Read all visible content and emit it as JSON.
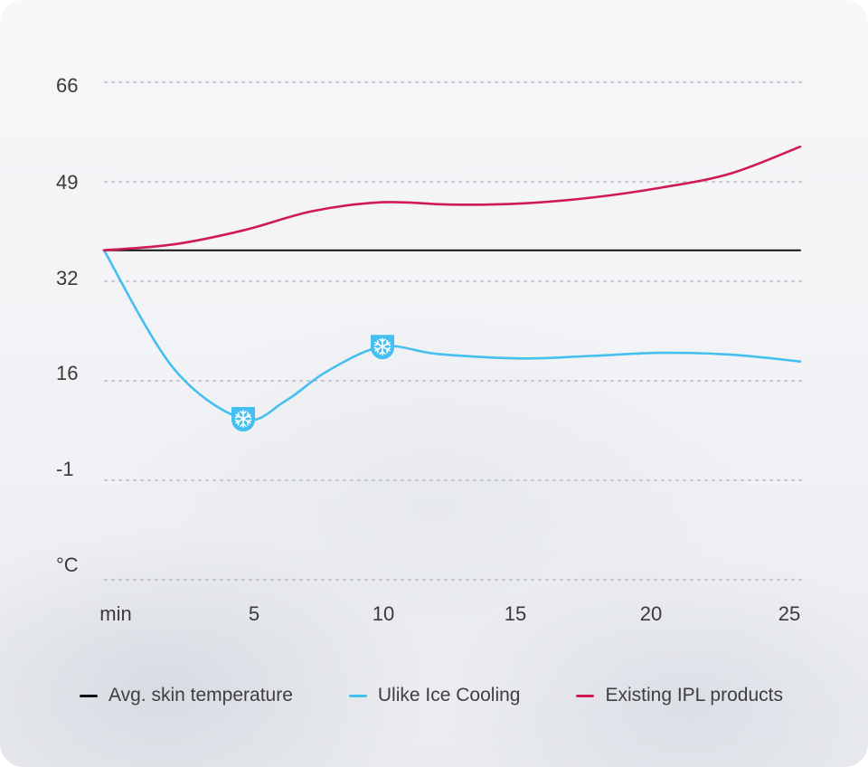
{
  "chart_data": {
    "type": "line",
    "ylabel": "°C",
    "y_ticks": [
      "66",
      "49",
      "32",
      "16",
      "-1"
    ],
    "x_ticks": [
      "min",
      "5",
      "10",
      "15",
      "20",
      "25"
    ],
    "y_axis_values": [
      66,
      49,
      32,
      16,
      -1,
      -18
    ],
    "grid": "horizontal dashed",
    "legend_position": "bottom",
    "series": [
      {
        "name": "Avg. skin temperature",
        "color": "#111111",
        "x": [
          0,
          25
        ],
        "values": [
          37.3,
          37.3
        ]
      },
      {
        "name": "Ulike Ice Cooling",
        "color": "#45bff0",
        "x": [
          0,
          2.5,
          5,
          6.5,
          8,
          10,
          12,
          15,
          17.5,
          20,
          22.5,
          25
        ],
        "values": [
          37.3,
          18,
          9.5,
          12.5,
          17.5,
          21.5,
          20.3,
          19.6,
          20,
          20.5,
          20.2,
          19.1
        ],
        "markers": [
          {
            "x": 5,
            "y": 9.5,
            "icon": "snowflake-icon"
          },
          {
            "x": 10,
            "y": 21.5,
            "icon": "snowflake-icon"
          }
        ]
      },
      {
        "name": "Existing IPL products",
        "color": "#cf1a55",
        "x": [
          0,
          2.5,
          5,
          7.5,
          10,
          12.5,
          15,
          17.5,
          20,
          22.5,
          25
        ],
        "values": [
          37.3,
          38.3,
          40.7,
          44,
          45.5,
          45.1,
          45.3,
          46.3,
          48,
          50.4,
          55
        ]
      }
    ]
  }
}
